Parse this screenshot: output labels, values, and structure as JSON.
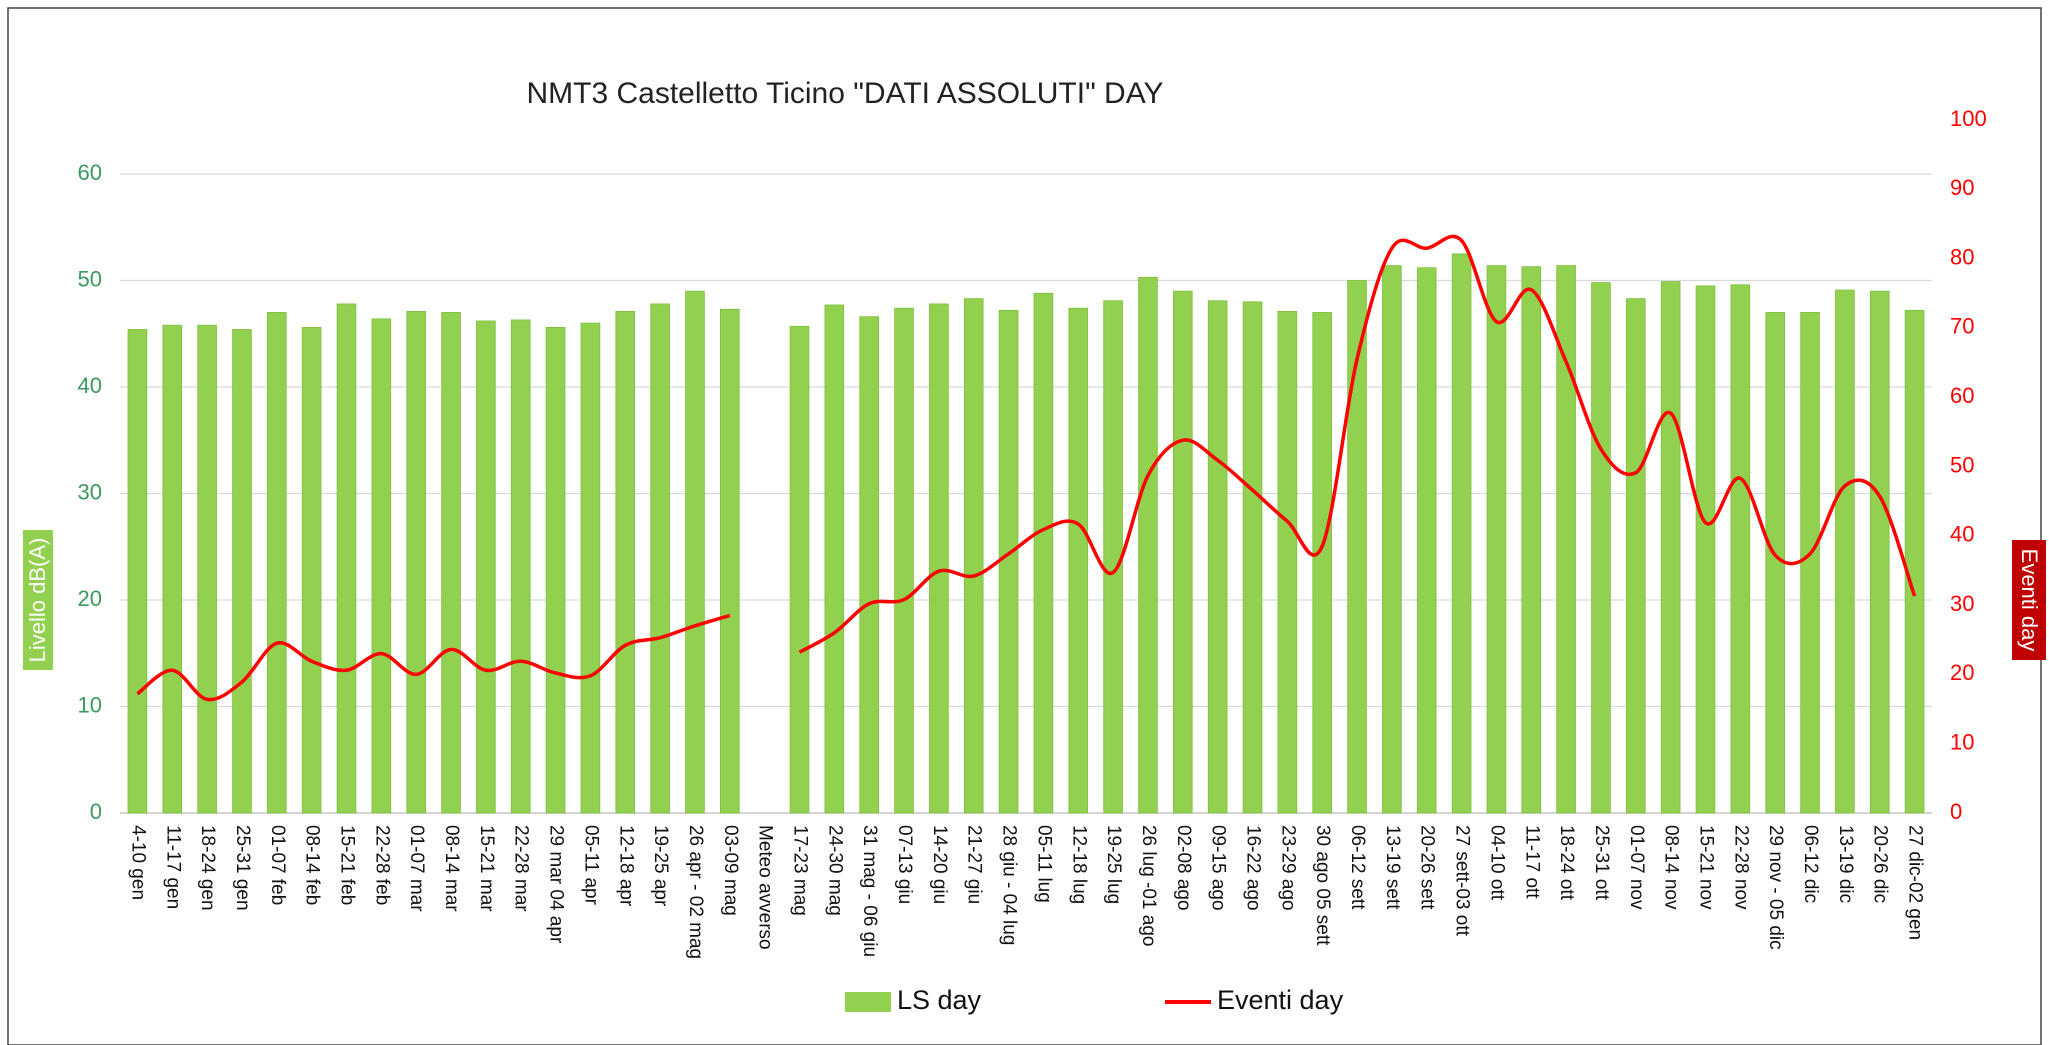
{
  "chart_data": {
    "type": "bar_line",
    "title": "NMT3 Castelletto Ticino \"DATI ASSOLUTI\" DAY",
    "y_label": "Livello dB(A)",
    "y2_label": "Eventi day",
    "categories": [
      "4-10 gen",
      "11-17 gen",
      "18-24 gen",
      "25-31 gen",
      "01-07 feb",
      "08-14 feb",
      "15-21 feb",
      "22-28 feb",
      "01-07 mar",
      "08-14 mar",
      "15-21 mar",
      "22-28 mar",
      "29 mar 04 apr",
      "05-11 apr",
      "12-18 apr",
      "19-25 apr",
      "26 apr - 02 mag",
      "03-09 mag",
      "Meteo avverso",
      "17-23 mag",
      "24-30 mag",
      "31 mag - 06 giu",
      "07-13 giu",
      "14-20 giu",
      "21-27 giu",
      "28 giu - 04 lug",
      "05-11 lug",
      "12-18 lug",
      "19-25 lug",
      "26 lug -01 ago",
      "02-08 ago",
      "09-15 ago",
      "16-22 ago",
      "23-29 ago",
      "30 ago 05 sett",
      "06-12  sett",
      "13-19 sett",
      "20-26 sett",
      "27 sett-03 ott",
      "04-10 ott",
      "11-17 ott",
      "18-24 ott",
      "25-31 ott",
      "01-07 nov",
      "08-14 nov",
      "15-21 nov",
      "22-28 nov",
      "29 nov - 05 dic",
      "06-12 dic",
      "13-19 dic",
      "20-26 dic",
      "27 dic-02 gen"
    ],
    "series": [
      {
        "name": "LS day",
        "color": "#92d050",
        "kind": "bar",
        "values": [
          45.4,
          45.8,
          45.8,
          45.4,
          47,
          45.6,
          47.8,
          46.4,
          47.1,
          47,
          46.2,
          46.3,
          45.6,
          46,
          47.1,
          47.8,
          49,
          47.3,
          null,
          45.7,
          47.7,
          46.6,
          47.4,
          47.8,
          48.3,
          47.2,
          48.8,
          47.4,
          48.1,
          50.3,
          49,
          48.1,
          48,
          47.1,
          47,
          50,
          51.4,
          51.2,
          52.5,
          51.4,
          51.3,
          51.4,
          49.8,
          48.3,
          49.9,
          49.5,
          49.6,
          47,
          47,
          49.1,
          49,
          47.2
        ]
      },
      {
        "name": "Eventi day",
        "color": "#ff0000",
        "kind": "line",
        "axis": "y2",
        "values": [
          17.2,
          20.6,
          16.4,
          18.9,
          24.5,
          21.9,
          20.6,
          23,
          20,
          23.6,
          20.6,
          21.9,
          20.2,
          19.8,
          24.2,
          25.3,
          27,
          28.5,
          null,
          23.2,
          26,
          30.2,
          30.8,
          34.9,
          34.2,
          37.4,
          40.9,
          41.7,
          34.7,
          48.7,
          53.8,
          50.9,
          46.6,
          42.1,
          38.5,
          65.5,
          81.5,
          81.5,
          82.6,
          70.9,
          75.5,
          65.1,
          52.5,
          49.1,
          57.7,
          41.9,
          48.3,
          37.2,
          37.4,
          47.2,
          45.7,
          31.3
        ]
      }
    ],
    "ylim": [
      0,
      60
    ],
    "yticks": [
      0,
      10,
      20,
      30,
      40,
      50,
      60
    ],
    "y2lim": [
      0,
      100
    ],
    "y2ticks": [
      0,
      10,
      20,
      30,
      40,
      50,
      60,
      70,
      80,
      90,
      100
    ],
    "grid": true,
    "legend": "bottom"
  }
}
